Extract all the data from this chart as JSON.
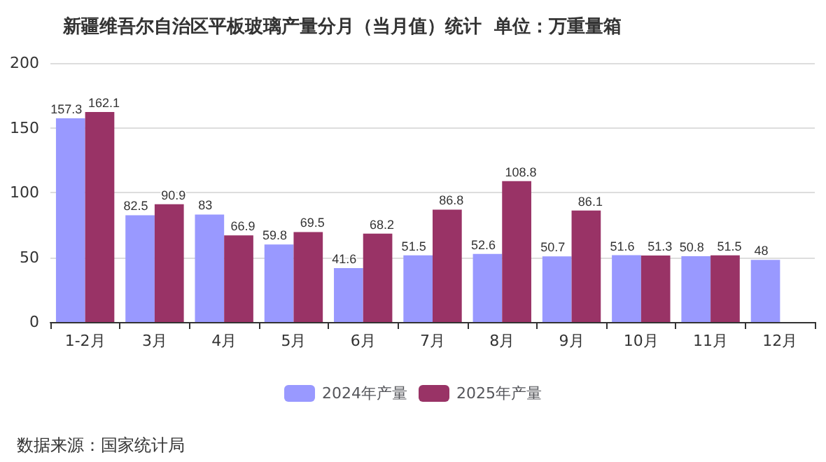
{
  "chart_data": {
    "type": "bar",
    "title": "新疆维吾尔自治区平板玻璃产量分月（当月值）统计  单位：万重量箱",
    "categories": [
      "1-2月",
      "3月",
      "4月",
      "5月",
      "6月",
      "7月",
      "8月",
      "9月",
      "10月",
      "11月",
      "12月"
    ],
    "series": [
      {
        "name": "2024年产量",
        "color": "#9999ff",
        "values": [
          157.3,
          82.5,
          83,
          59.8,
          41.6,
          51.5,
          52.6,
          50.7,
          51.6,
          50.8,
          48
        ]
      },
      {
        "name": "2025年产量",
        "color": "#993366",
        "values": [
          162.1,
          90.9,
          66.9,
          69.5,
          68.2,
          86.8,
          108.8,
          86.1,
          51.3,
          51.5,
          null
        ]
      }
    ],
    "ylim": [
      0,
      200
    ],
    "yticks": [
      0,
      50,
      100,
      150,
      200
    ],
    "grid": "y",
    "legend": "bottom",
    "data_labels": true,
    "annotations": [
      "数据来源：国家统计局"
    ]
  }
}
